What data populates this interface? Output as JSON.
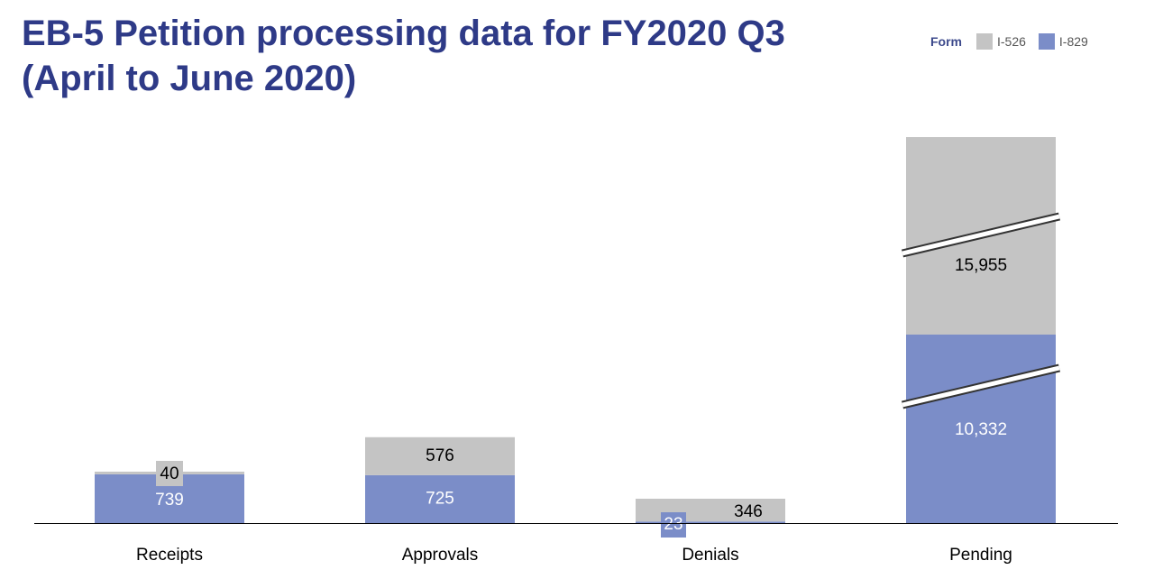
{
  "colors": {
    "title": "#2e3a87",
    "i526": "#c4c4c4",
    "i829": "#7b8dc8",
    "axis": "#000000",
    "label_dark": "#000000",
    "label_light": "#ffffff"
  },
  "chart_data": {
    "type": "bar",
    "stacked": true,
    "title_lines": [
      "EB-5 Petition processing data for FY2020 Q3",
      "(April to June 2020)"
    ],
    "legend": {
      "title": "Form",
      "position": "top-right"
    },
    "categories": [
      "Receipts",
      "Approvals",
      "Denials",
      "Pending"
    ],
    "series": [
      {
        "name": "I-829",
        "values": [
          739,
          725,
          23,
          10332
        ],
        "labels": [
          "739",
          "725",
          "23",
          "10,332"
        ]
      },
      {
        "name": "I-526",
        "values": [
          40,
          576,
          346,
          15955
        ],
        "labels": [
          "40",
          "576",
          "346",
          "15,955"
        ]
      }
    ],
    "axis_break": {
      "category": "Pending"
    },
    "grid": false
  }
}
